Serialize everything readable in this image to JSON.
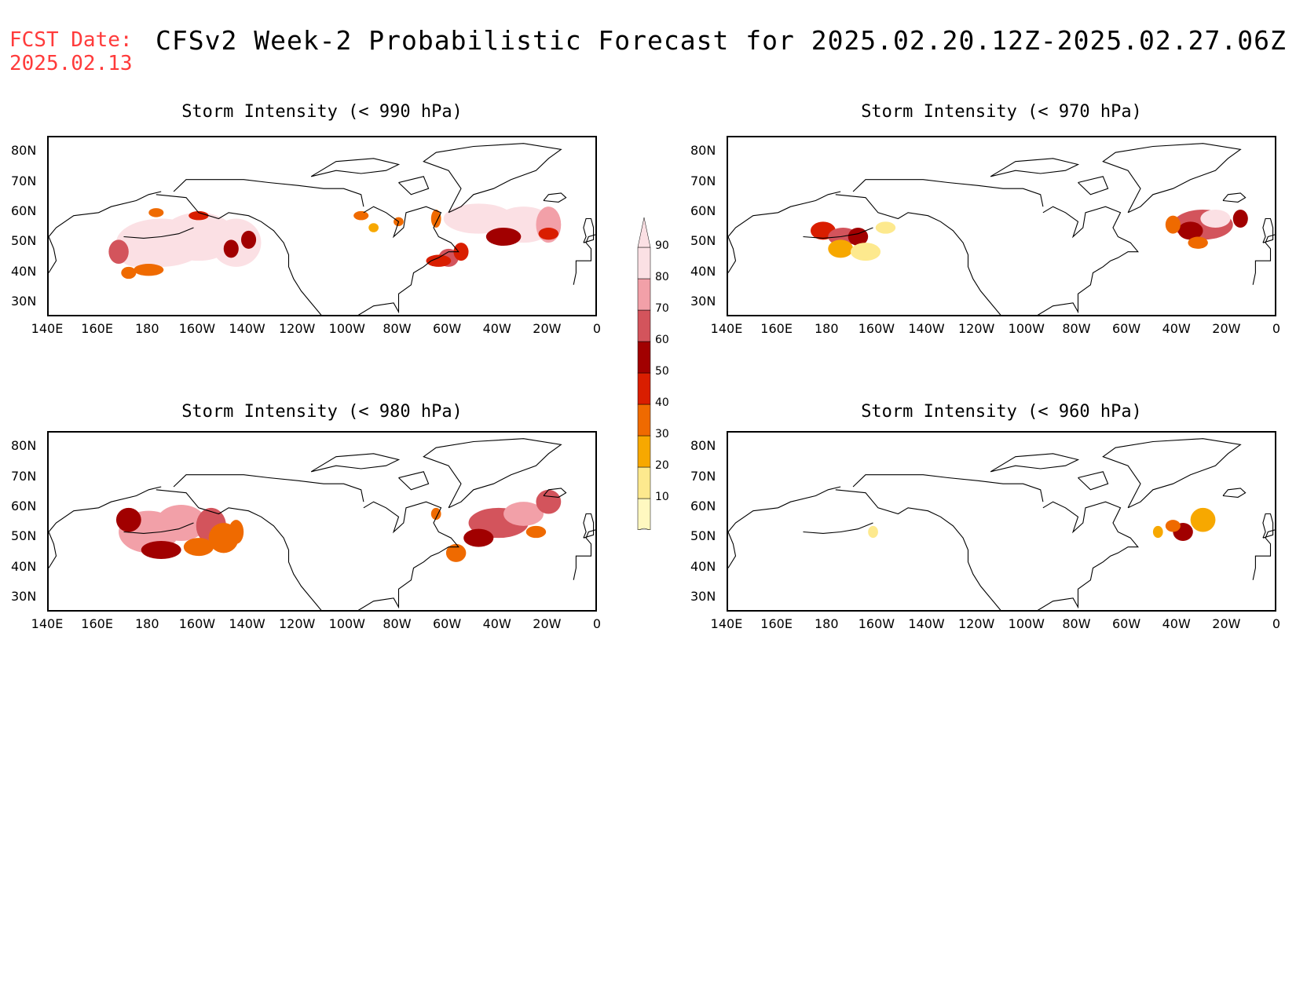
{
  "header": {
    "fcst_label": "FCST Date:",
    "fcst_date": "2025.02.13",
    "title": "CFSv2 Week-2 Probabilistic Forecast for 2025.02.20.12Z-2025.02.27.06Z"
  },
  "axes": {
    "lat_labels": [
      "80N",
      "70N",
      "60N",
      "50N",
      "40N",
      "30N"
    ],
    "lon_labels": [
      "140E",
      "160E",
      "180",
      "160W",
      "140W",
      "120W",
      "100W",
      "80W",
      "60W",
      "40W",
      "20W",
      "0"
    ]
  },
  "colorbar": {
    "levels": [
      "10",
      "20",
      "30",
      "40",
      "50",
      "60",
      "70",
      "80",
      "90"
    ],
    "colors": [
      "#fff8c0",
      "#fde98e",
      "#f7a800",
      "#ef6a00",
      "#d91e00",
      "#a10000",
      "#d3545c",
      "#f2a0a8",
      "#fbe0e4"
    ]
  },
  "panels": [
    {
      "id": "p990",
      "title": "Storm Intensity (< 990 hPa)"
    },
    {
      "id": "p970",
      "title": "Storm Intensity (< 970 hPa)"
    },
    {
      "id": "p980",
      "title": "Storm Intensity (< 980 hPa)"
    },
    {
      "id": "p960",
      "title": "Storm Intensity (< 960 hPa)"
    }
  ]
}
